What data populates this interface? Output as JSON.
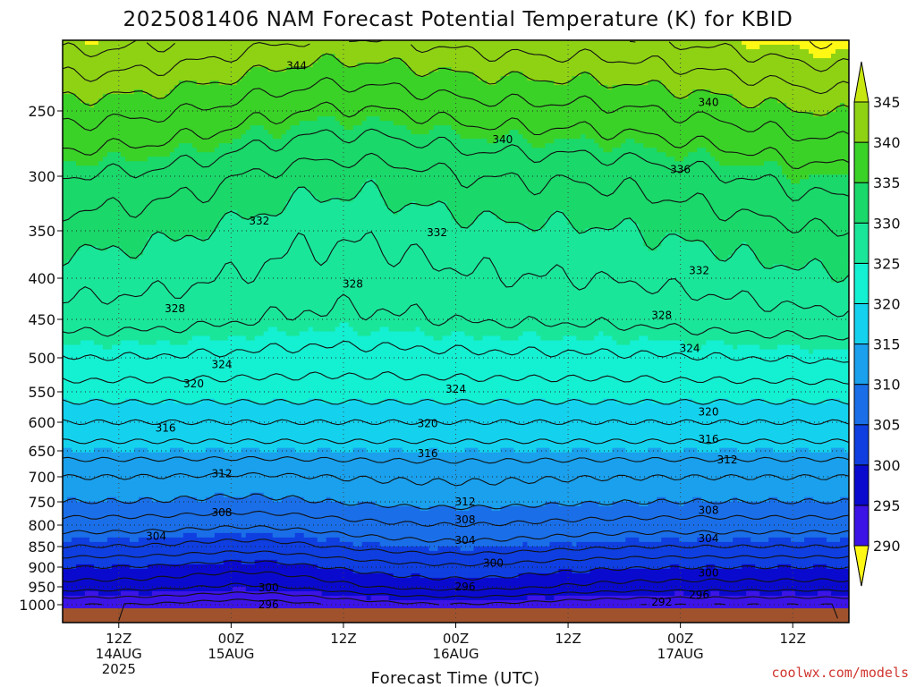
{
  "chart_data": {
    "type": "heatmap",
    "title": "2025081406 NAM Forecast Potential Temperature (K) for KBID",
    "xlabel": "Forecast Time (UTC)",
    "credit": "coolwx.com/models",
    "y_axis": {
      "scale": "pressure (reversed)",
      "range": [
        200,
        1010
      ],
      "tick_labels": [
        "250",
        "300",
        "350",
        "400",
        "450",
        "500",
        "550",
        "600",
        "650",
        "700",
        "750",
        "800",
        "850",
        "900",
        "950",
        "1000"
      ],
      "tick_values": [
        250,
        300,
        350,
        400,
        450,
        500,
        550,
        600,
        650,
        700,
        750,
        800,
        850,
        900,
        950,
        1000
      ]
    },
    "x_axis": {
      "range_hours": [
        0,
        84
      ],
      "ticks": [
        {
          "hour": 6,
          "lines": [
            "12Z",
            "14AUG",
            "2025"
          ]
        },
        {
          "hour": 18,
          "lines": [
            "00Z",
            "15AUG"
          ]
        },
        {
          "hour": 30,
          "lines": [
            "12Z"
          ]
        },
        {
          "hour": 42,
          "lines": [
            "00Z",
            "16AUG"
          ]
        },
        {
          "hour": 54,
          "lines": [
            "12Z"
          ]
        },
        {
          "hour": 66,
          "lines": [
            "00Z",
            "17AUG"
          ]
        },
        {
          "hour": 78,
          "lines": [
            "12Z"
          ]
        }
      ]
    },
    "grid": true,
    "colorbar": {
      "placement": "right",
      "levels": [
        290,
        295,
        300,
        305,
        310,
        315,
        320,
        325,
        330,
        335,
        340,
        345
      ],
      "tick_labels": [
        "290",
        "295",
        "300",
        "305",
        "310",
        "315",
        "320",
        "325",
        "330",
        "335",
        "340",
        "345"
      ],
      "colors": [
        "#7b1ff0",
        "#3c14e6",
        "#0a0acf",
        "#0f3fe0",
        "#1a6fe8",
        "#1aa0ec",
        "#14d2ee",
        "#14f0d2",
        "#1ae69a",
        "#1ad86a",
        "#3bd228",
        "#8fd214",
        "#c8e610",
        "#fff814"
      ]
    },
    "field_profile": {
      "pressure": [
        1000,
        950,
        900,
        850,
        800,
        750,
        700,
        650,
        600,
        550,
        500,
        450,
        400,
        350,
        300,
        250,
        200
      ],
      "theta_base": [
        292,
        297,
        300,
        304,
        307,
        310,
        312,
        315,
        318,
        321,
        324,
        327,
        329,
        331,
        334,
        339,
        345
      ]
    },
    "contour_labels": [
      {
        "text": "344",
        "hour": 25,
        "p": 218
      },
      {
        "text": "340",
        "hour": 47,
        "p": 272
      },
      {
        "text": "340",
        "hour": 69,
        "p": 244
      },
      {
        "text": "336",
        "hour": 66,
        "p": 295
      },
      {
        "text": "332",
        "hour": 21,
        "p": 341
      },
      {
        "text": "332",
        "hour": 40,
        "p": 352
      },
      {
        "text": "332",
        "hour": 68,
        "p": 392
      },
      {
        "text": "328",
        "hour": 12,
        "p": 437
      },
      {
        "text": "328",
        "hour": 31,
        "p": 407
      },
      {
        "text": "328",
        "hour": 64,
        "p": 445
      },
      {
        "text": "324",
        "hour": 17,
        "p": 510
      },
      {
        "text": "324",
        "hour": 42,
        "p": 546
      },
      {
        "text": "324",
        "hour": 67,
        "p": 488
      },
      {
        "text": "320",
        "hour": 14,
        "p": 538
      },
      {
        "text": "320",
        "hour": 39,
        "p": 602
      },
      {
        "text": "320",
        "hour": 69,
        "p": 583
      },
      {
        "text": "316",
        "hour": 11,
        "p": 610
      },
      {
        "text": "316",
        "hour": 39,
        "p": 655
      },
      {
        "text": "316",
        "hour": 69,
        "p": 630
      },
      {
        "text": "312",
        "hour": 17,
        "p": 694
      },
      {
        "text": "312",
        "hour": 43,
        "p": 750
      },
      {
        "text": "312",
        "hour": 71,
        "p": 667
      },
      {
        "text": "308",
        "hour": 17,
        "p": 773
      },
      {
        "text": "308",
        "hour": 43,
        "p": 788
      },
      {
        "text": "308",
        "hour": 69,
        "p": 768
      },
      {
        "text": "304",
        "hour": 10,
        "p": 826
      },
      {
        "text": "304",
        "hour": 43,
        "p": 835
      },
      {
        "text": "304",
        "hour": 69,
        "p": 831
      },
      {
        "text": "300",
        "hour": 46,
        "p": 890
      },
      {
        "text": "300",
        "hour": 69,
        "p": 915
      },
      {
        "text": "300",
        "hour": 22,
        "p": 952
      },
      {
        "text": "296",
        "hour": 43,
        "p": 950
      },
      {
        "text": "296",
        "hour": 68,
        "p": 972
      },
      {
        "text": "292",
        "hour": 64,
        "p": 992
      },
      {
        "text": "296",
        "hour": 22,
        "p": 1000
      }
    ]
  }
}
